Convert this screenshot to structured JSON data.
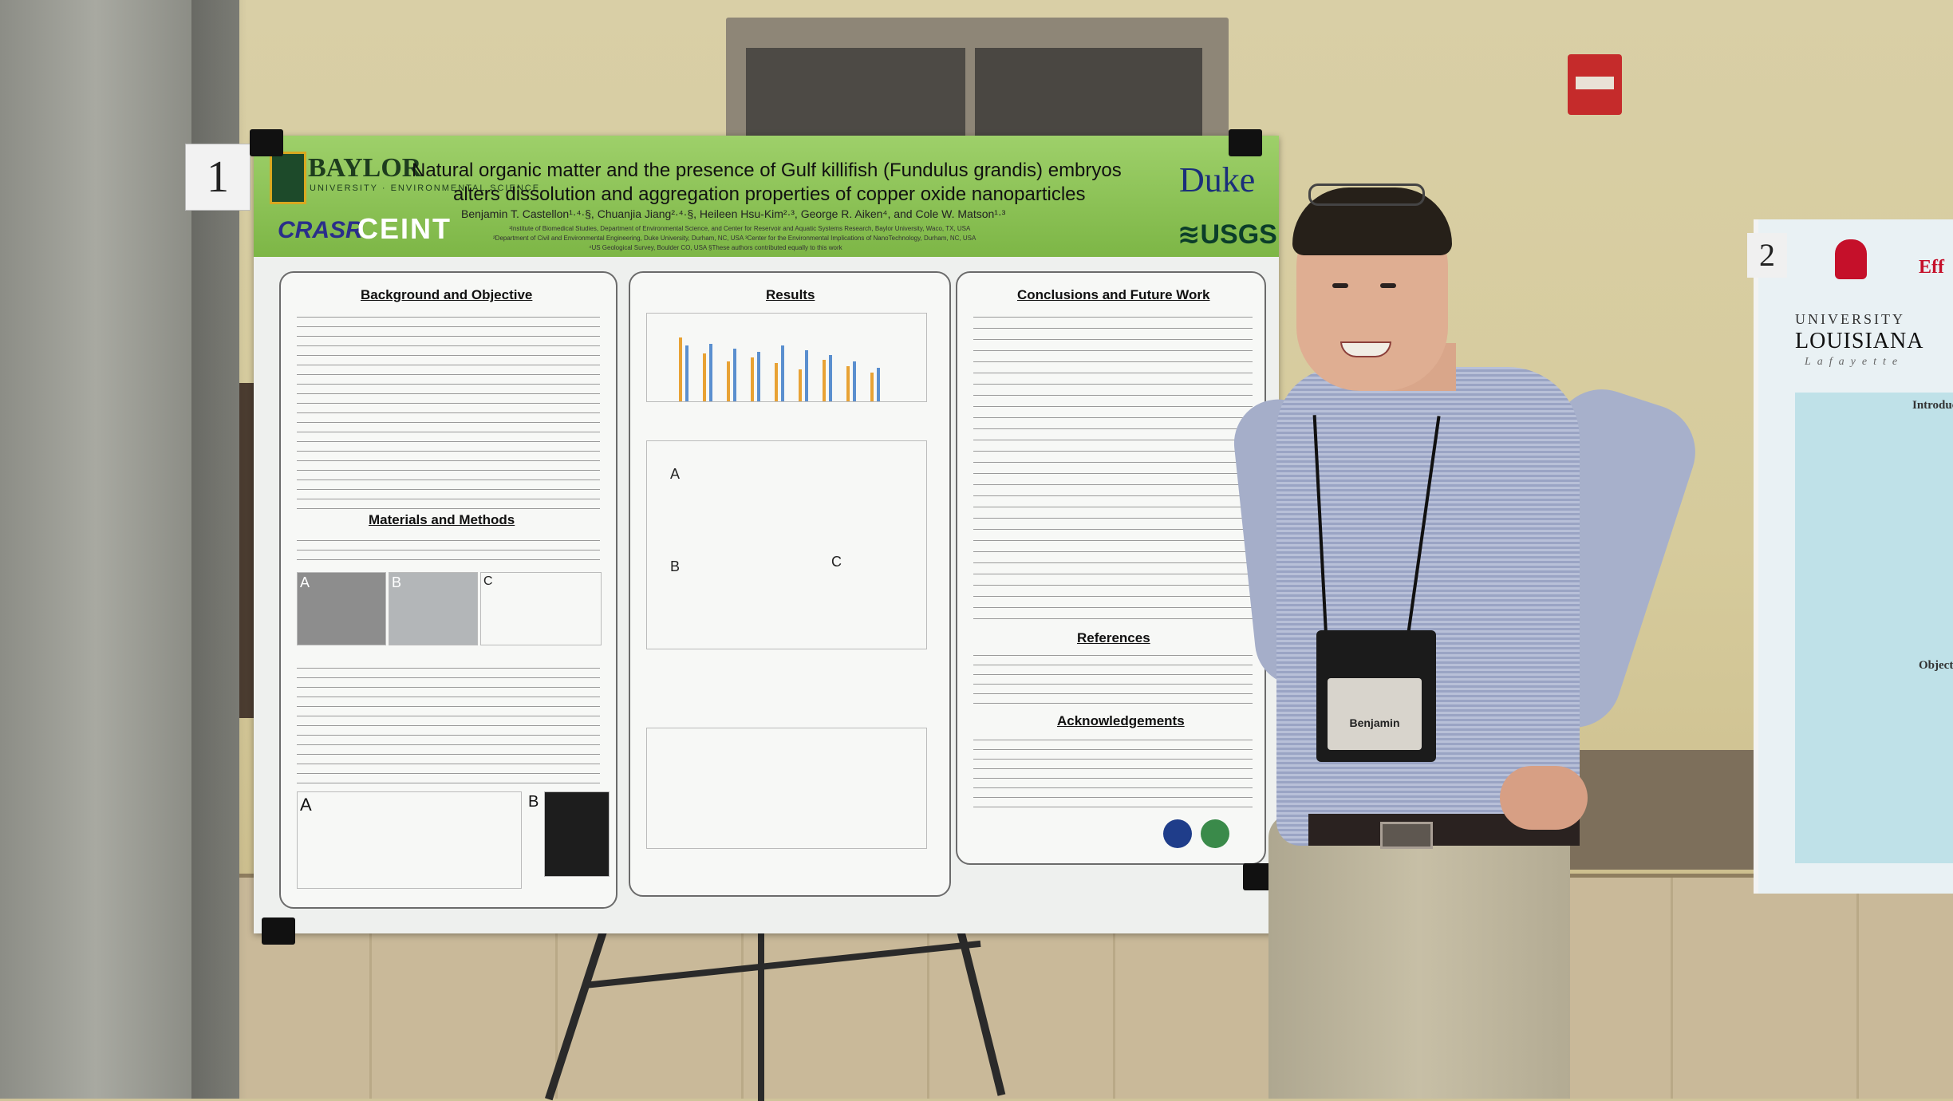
{
  "poster": {
    "number": "1",
    "baylor": "BAYLOR",
    "baylor_sub": "UNIVERSITY · ENVIRONMENTAL SCIENCE",
    "crash": "CRASR",
    "ceint": "CEINT",
    "duke": "Duke",
    "usgs": "≋USGS",
    "title_line1": "Natural organic matter and the presence of Gulf killifish (Fundulus grandis) embryos",
    "title_line2": "alters dissolution and aggregation properties of copper oxide nanoparticles",
    "authors": "Benjamin T. Castellon¹·⁴·§, Chuanjia Jiang²·⁴·§, Heileen Hsu-Kim²·³, George R. Aiken⁴, and Cole W. Matson¹·³",
    "affil1": "¹Institute of Biomedical Studies, Department of Environmental Science, and Center for Reservoir and Aquatic Systems Research, Baylor University, Waco, TX, USA",
    "affil2": "²Department of Civil and Environmental Engineering, Duke University, Durham, NC, USA ³Center for the Environmental Implications of NanoTechnology, Durham, NC, USA",
    "affil3": "⁴US Geological Survey, Boulder CO, USA §These authors contributed equally to this work",
    "sections": {
      "background": "Background and Objective",
      "materials": "Materials and Methods",
      "results": "Results",
      "conclusions": "Conclusions and Future Work",
      "references": "References",
      "acknowledgements": "Acknowledgements"
    },
    "fig_letters": {
      "a": "A",
      "b": "B",
      "c": "C"
    }
  },
  "badge": {
    "name": "Benjamin"
  },
  "poster2": {
    "number": "2",
    "univ": "UNIVERSITY",
    "louisiana": "LOUISIANA",
    "lafayette": "Lafayette",
    "eff": "Eff",
    "intro": "Introduct",
    "objectives": "Objectiv"
  },
  "colors": {
    "header_green": "#8cc456",
    "baylor_green": "#1e3d1e",
    "duke_blue": "#1a2f7a",
    "ul_red": "#c5102a"
  }
}
